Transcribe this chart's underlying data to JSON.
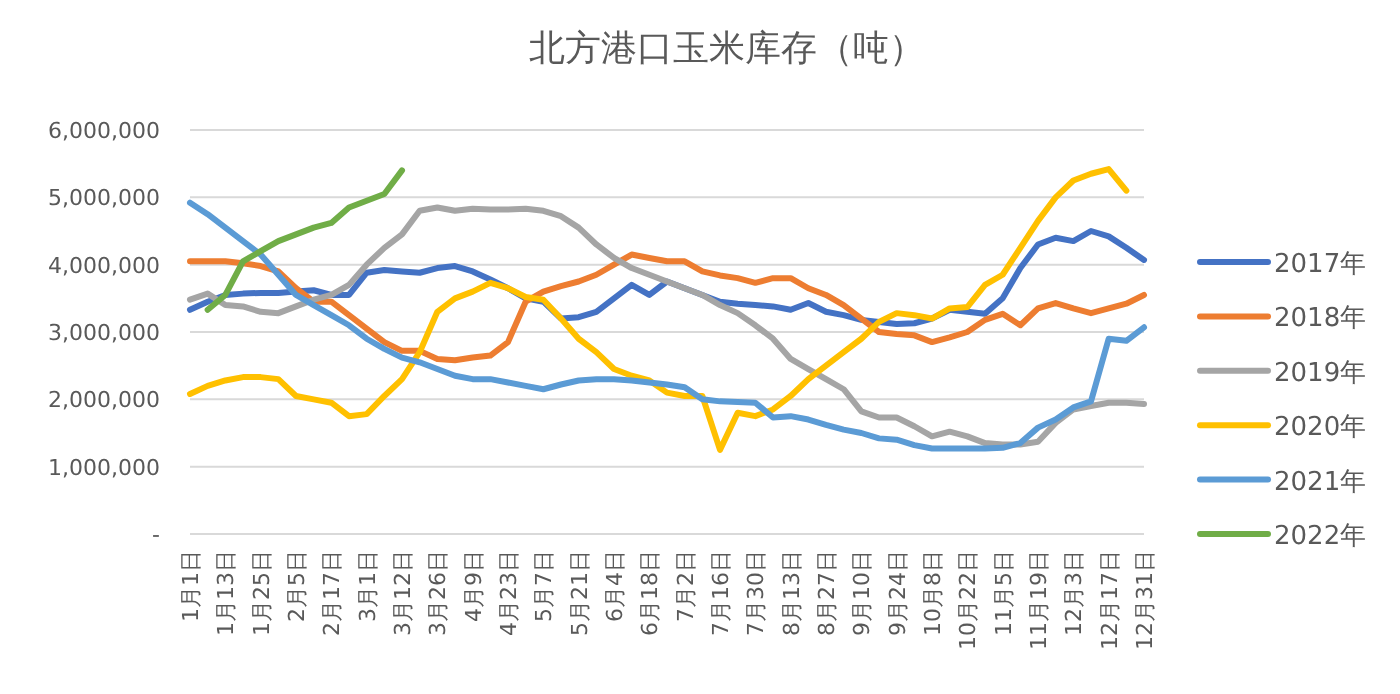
{
  "chart_data": {
    "type": "line",
    "title": "北方港口玉米库存（吨）",
    "categories": [
      "1月1日",
      null,
      "1月13日",
      null,
      "1月25日",
      null,
      "2月5日",
      null,
      "2月17日",
      null,
      "3月1日",
      null,
      "3月12日",
      null,
      "3月26日",
      null,
      "4月9日",
      null,
      "4月23日",
      null,
      "5月7日",
      null,
      "5月21日",
      null,
      "6月4日",
      null,
      "6月18日",
      null,
      "7月2日",
      null,
      "7月16日",
      null,
      "7月30日",
      null,
      "8月13日",
      null,
      "8月27日",
      null,
      "9月10日",
      null,
      "9月24日",
      null,
      "10月8日",
      null,
      "10月22日",
      null,
      "11月5日",
      null,
      "11月19日",
      null,
      "12月3日",
      null,
      "12月17日",
      null,
      "12月31日"
    ],
    "series": [
      {
        "name": "2017年",
        "color": "#4472c4",
        "values": [
          3330000,
          3450000,
          3550000,
          3570000,
          3580000,
          3580000,
          3600000,
          3620000,
          3550000,
          3550000,
          3880000,
          3920000,
          3900000,
          3880000,
          3950000,
          3980000,
          3900000,
          3780000,
          3650000,
          3500000,
          3450000,
          3200000,
          3220000,
          3300000,
          3500000,
          3700000,
          3550000,
          3750000,
          3650000,
          3550000,
          3450000,
          3420000,
          3400000,
          3380000,
          3330000,
          3430000,
          3300000,
          3250000,
          3180000,
          3150000,
          3120000,
          3130000,
          3200000,
          3330000,
          3300000,
          3270000,
          3500000,
          3950000,
          4300000,
          4400000,
          4350000,
          4500000,
          4420000,
          4250000,
          4070000
        ]
      },
      {
        "name": "2018年",
        "color": "#ed7d31",
        "values": [
          4050000,
          4050000,
          4050000,
          4020000,
          3980000,
          3900000,
          3650000,
          3450000,
          3450000,
          3250000,
          3050000,
          2850000,
          2720000,
          2720000,
          2600000,
          2580000,
          2620000,
          2650000,
          2850000,
          3450000,
          3600000,
          3680000,
          3750000,
          3850000,
          4000000,
          4150000,
          4100000,
          4050000,
          4050000,
          3900000,
          3840000,
          3800000,
          3730000,
          3800000,
          3800000,
          3650000,
          3550000,
          3400000,
          3200000,
          3000000,
          2970000,
          2950000,
          2850000,
          2920000,
          3000000,
          3180000,
          3270000,
          3100000,
          3350000,
          3430000,
          3350000,
          3280000,
          3350000,
          3420000,
          3550000
        ]
      },
      {
        "name": "2019年",
        "color": "#a5a5a5",
        "values": [
          3480000,
          3570000,
          3400000,
          3380000,
          3300000,
          3280000,
          3380000,
          3480000,
          3550000,
          3700000,
          4000000,
          4250000,
          4450000,
          4800000,
          4850000,
          4800000,
          4830000,
          4820000,
          4820000,
          4830000,
          4800000,
          4720000,
          4550000,
          4300000,
          4100000,
          3950000,
          3850000,
          3750000,
          3650000,
          3550000,
          3400000,
          3280000,
          3100000,
          2900000,
          2600000,
          2450000,
          2300000,
          2150000,
          1820000,
          1730000,
          1730000,
          1600000,
          1450000,
          1520000,
          1450000,
          1350000,
          1330000,
          1330000,
          1370000,
          1650000,
          1850000,
          1900000,
          1950000,
          1950000,
          1930000
        ]
      },
      {
        "name": "2020年",
        "color": "#ffc000",
        "values": [
          2080000,
          2200000,
          2280000,
          2330000,
          2330000,
          2300000,
          2050000,
          2000000,
          1950000,
          1750000,
          1780000,
          2050000,
          2300000,
          2700000,
          3300000,
          3500000,
          3600000,
          3730000,
          3650000,
          3520000,
          3480000,
          3200000,
          2900000,
          2700000,
          2450000,
          2350000,
          2280000,
          2100000,
          2050000,
          2050000,
          1250000,
          1800000,
          1750000,
          1850000,
          2050000,
          2300000,
          2500000,
          2700000,
          2900000,
          3150000,
          3280000,
          3250000,
          3200000,
          3350000,
          3370000,
          3700000,
          3850000,
          4250000,
          4650000,
          5000000,
          5250000,
          5350000,
          5420000,
          5100000,
          null
        ]
      },
      {
        "name": "2021年",
        "color": "#5b9bd5",
        "values": [
          4920000,
          4750000,
          4550000,
          4350000,
          4150000,
          3850000,
          3550000,
          3400000,
          3250000,
          3100000,
          2900000,
          2750000,
          2620000,
          2550000,
          2450000,
          2350000,
          2300000,
          2300000,
          2250000,
          2200000,
          2150000,
          2220000,
          2280000,
          2300000,
          2300000,
          2280000,
          2250000,
          2220000,
          2180000,
          2000000,
          1970000,
          1960000,
          1950000,
          1730000,
          1750000,
          1700000,
          1620000,
          1550000,
          1500000,
          1420000,
          1400000,
          1320000,
          1270000,
          1270000,
          1270000,
          1270000,
          1280000,
          1350000,
          1580000,
          1700000,
          1880000,
          1970000,
          2900000,
          2870000,
          3070000
        ]
      },
      {
        "name": "2022年",
        "color": "#70ad47",
        "values": [
          null,
          3330000,
          3550000,
          4050000,
          4200000,
          4350000,
          4450000,
          4550000,
          4620000,
          4850000,
          4950000,
          5050000,
          5400000,
          null,
          null,
          null,
          null,
          null,
          null,
          null,
          null,
          null,
          null,
          null,
          null,
          null,
          null,
          null,
          null,
          null,
          null,
          null,
          null,
          null,
          null,
          null,
          null,
          null,
          null,
          null,
          null,
          null,
          null,
          null,
          null,
          null,
          null,
          null,
          null,
          null,
          null,
          null,
          null,
          null,
          null
        ]
      }
    ],
    "ylim": [
      0,
      6000000
    ],
    "yticks": [
      {
        "value": 0,
        "label": "-"
      },
      {
        "value": 1000000,
        "label": "1,000,000"
      },
      {
        "value": 2000000,
        "label": "2,000,000"
      },
      {
        "value": 3000000,
        "label": "3,000,000"
      },
      {
        "value": 4000000,
        "label": "4,000,000"
      },
      {
        "value": 5000000,
        "label": "5,000,000"
      },
      {
        "value": 6000000,
        "label": "6,000,000"
      }
    ],
    "grid": "y",
    "legend": "right",
    "marker": "none",
    "line_style": "solid"
  }
}
